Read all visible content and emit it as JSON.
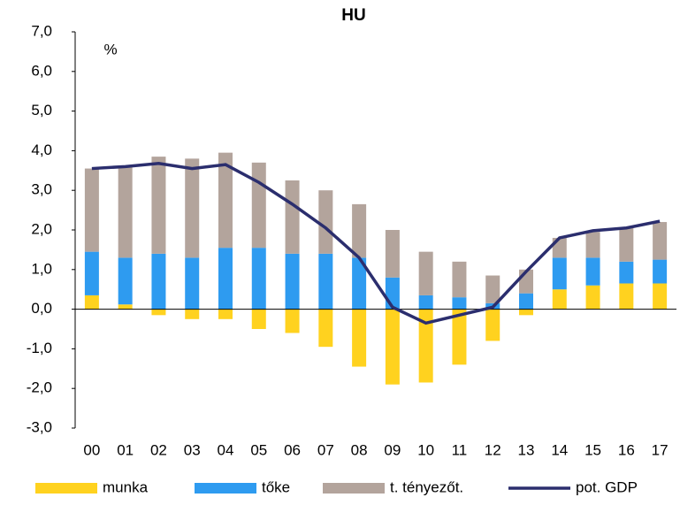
{
  "chart_data": {
    "type": "bar",
    "title": "HU",
    "annotation": "%",
    "categories": [
      "00",
      "01",
      "02",
      "03",
      "04",
      "05",
      "06",
      "07",
      "08",
      "09",
      "10",
      "11",
      "12",
      "13",
      "14",
      "15",
      "16",
      "17"
    ],
    "series": [
      {
        "name": "munka",
        "color": "#ffd21f",
        "values": [
          0.35,
          0.12,
          -0.15,
          -0.25,
          -0.25,
          -0.5,
          -0.6,
          -0.95,
          -1.45,
          -1.9,
          -1.85,
          -1.4,
          -0.8,
          -0.15,
          0.5,
          0.6,
          0.65,
          0.65
        ]
      },
      {
        "name": "tőke",
        "color": "#2e9bf0",
        "values": [
          1.1,
          1.18,
          1.4,
          1.3,
          1.55,
          1.55,
          1.4,
          1.4,
          1.3,
          0.8,
          0.35,
          0.3,
          0.15,
          0.4,
          0.8,
          0.7,
          0.55,
          0.6
        ]
      },
      {
        "name": "t. tényezőt.",
        "color": "#b3a49c",
        "values": [
          2.1,
          2.3,
          2.45,
          2.5,
          2.4,
          2.15,
          1.85,
          1.6,
          1.35,
          1.2,
          1.1,
          0.9,
          0.7,
          0.6,
          0.5,
          0.65,
          0.85,
          0.95
        ]
      },
      {
        "name": "pot. GDP",
        "type": "line",
        "color": "#2b2e6e",
        "values": [
          3.55,
          3.6,
          3.68,
          3.55,
          3.65,
          3.2,
          2.65,
          2.05,
          1.3,
          0.05,
          -0.35,
          -0.15,
          0.05,
          0.95,
          1.8,
          1.98,
          2.05,
          2.22
        ]
      }
    ],
    "ylim": [
      -3,
      7
    ],
    "yticks": [
      {
        "value": -3,
        "label": "-3,0"
      },
      {
        "value": -2,
        "label": "-2,0"
      },
      {
        "value": -1,
        "label": "-1,0"
      },
      {
        "value": 0,
        "label": "0,0"
      },
      {
        "value": 1,
        "label": "1,0"
      },
      {
        "value": 2,
        "label": "2,0"
      },
      {
        "value": 3,
        "label": "3,0"
      },
      {
        "value": 4,
        "label": "4,0"
      },
      {
        "value": 5,
        "label": "5,0"
      },
      {
        "value": 6,
        "label": "6,0"
      },
      {
        "value": 7,
        "label": "7,0"
      }
    ],
    "grid": false,
    "legend": "bottom"
  }
}
